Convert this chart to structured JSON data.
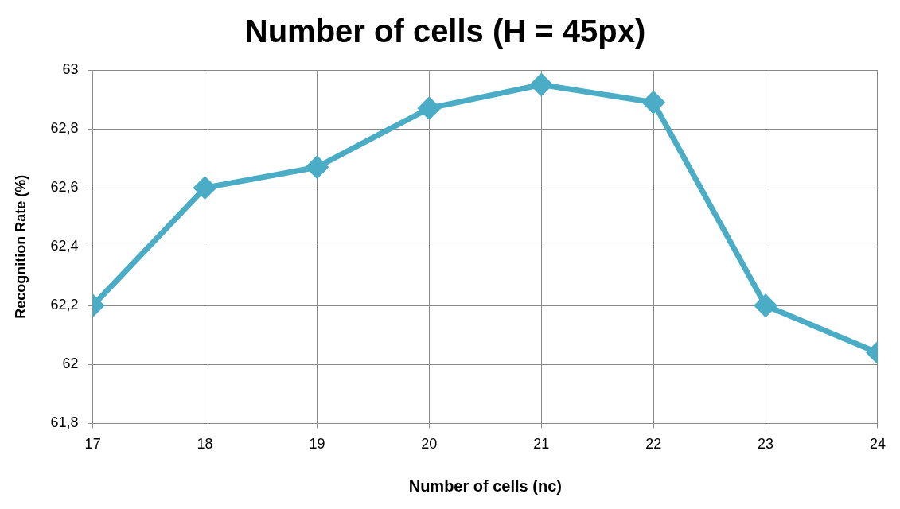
{
  "chart_data": {
    "type": "line",
    "title": "Number of cells (H = 45px)",
    "xlabel": "Number of cells (nc)",
    "ylabel": "Recognition Rate (%)",
    "x": [
      17,
      18,
      19,
      20,
      21,
      22,
      23,
      24
    ],
    "series": [
      {
        "color": "#4bacc6",
        "values": [
          62.2,
          62.6,
          62.67,
          62.87,
          62.95,
          62.89,
          62.2,
          62.04
        ]
      }
    ],
    "xlim": [
      17,
      24
    ],
    "xticks": [
      17,
      18,
      19,
      20,
      21,
      22,
      23,
      24
    ],
    "ylim": [
      61.8,
      63
    ],
    "yticks": [
      {
        "value": 61.8,
        "label": "61,8"
      },
      62,
      {
        "value": 62.2,
        "label": "62,2"
      },
      {
        "value": 62.4,
        "label": "62,4"
      },
      {
        "value": 62.6,
        "label": "62,6"
      },
      {
        "value": 62.8,
        "label": "62,8"
      },
      63
    ],
    "grid": true,
    "marker": "diamond",
    "line_style": "solid",
    "legend": false
  }
}
